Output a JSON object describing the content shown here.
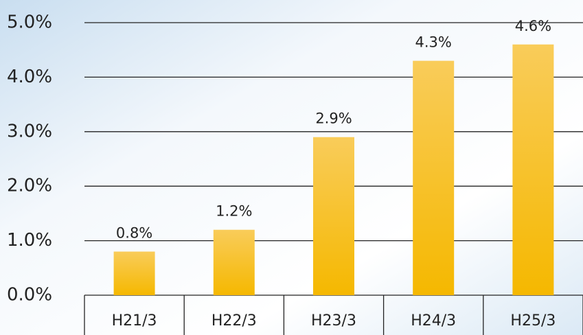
{
  "chart_data": {
    "type": "bar",
    "categories": [
      "H21/3",
      "H22/3",
      "H23/3",
      "H24/3",
      "H25/3"
    ],
    "values": [
      0.8,
      1.2,
      2.9,
      4.3,
      4.6
    ],
    "value_labels": [
      "0.8%",
      "1.2%",
      "2.9%",
      "4.3%",
      "4.6%"
    ],
    "color": "#f7bd2a",
    "ylim": [
      0,
      5
    ],
    "yticks": [
      {
        "value": 0,
        "label": "0.0%"
      },
      {
        "value": 1,
        "label": "1.0%"
      },
      {
        "value": 2,
        "label": "2.0%"
      },
      {
        "value": 3,
        "label": "3.0%"
      },
      {
        "value": 4,
        "label": "4.0%"
      },
      {
        "value": 5,
        "label": "5.0%"
      }
    ],
    "grid": true
  }
}
